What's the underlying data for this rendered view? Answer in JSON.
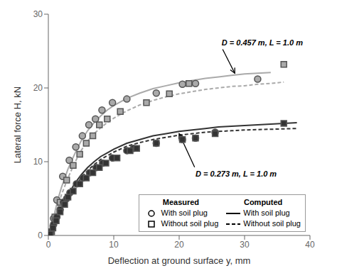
{
  "chart_data": {
    "type": "line",
    "xlabel": "Deflection at ground surface y, mm",
    "ylabel": "Lateral force H, kN",
    "xlim": [
      0,
      40
    ],
    "ylim": [
      0,
      30
    ],
    "xticks": [
      0,
      10,
      20,
      30,
      40
    ],
    "yticks": [
      0,
      10,
      20,
      30
    ],
    "grid": false,
    "legend": "lower right",
    "legend_groups": [
      "Measured",
      "Computed"
    ],
    "series": [
      {
        "name": "With soil plug",
        "group": "Computed",
        "type": "line",
        "line_style": "solid",
        "color": "#aaaaaa",
        "x": [
          0.0,
          0.3,
          0.6,
          1.0,
          1.5,
          2.0,
          3.0,
          4.0,
          5.0,
          6.0,
          7.0,
          8.0,
          9.0,
          10.0,
          12.0,
          14.0,
          16.0,
          18.0,
          20.0,
          22.0,
          24.0,
          26.0,
          28.0,
          30.0,
          32.0,
          34.0
        ],
        "values": [
          0.0,
          0.8,
          1.8,
          3.2,
          5.0,
          6.5,
          9.0,
          11.0,
          12.8,
          14.2,
          15.3,
          16.2,
          17.0,
          17.6,
          18.6,
          19.3,
          19.9,
          20.3,
          20.7,
          21.0,
          21.3,
          21.5,
          21.7,
          21.9,
          22.0,
          22.1
        ]
      },
      {
        "name": "Without soil plug",
        "group": "Computed",
        "type": "line",
        "line_style": "dashed",
        "color": "#aaaaaa",
        "x": [
          0.0,
          0.3,
          0.6,
          1.0,
          1.5,
          2.0,
          3.0,
          4.0,
          5.0,
          6.0,
          7.0,
          8.0,
          9.0,
          10.0,
          12.0,
          14.0,
          16.0,
          18.0,
          20.0,
          22.0,
          24.0,
          26.0,
          28.0,
          30.0,
          32.0,
          34.0,
          36.0
        ],
        "values": [
          0.0,
          0.6,
          1.4,
          2.5,
          4.0,
          5.5,
          7.8,
          9.8,
          11.5,
          12.8,
          13.8,
          14.6,
          15.3,
          15.9,
          16.9,
          17.7,
          18.3,
          18.8,
          19.2,
          19.5,
          19.8,
          20.0,
          20.2,
          20.3,
          20.5,
          20.6,
          20.8
        ]
      },
      {
        "name": "With soil plug",
        "group": "Computed",
        "type": "line",
        "line_style": "solid",
        "color": "#333333",
        "x": [
          0.0,
          0.3,
          0.6,
          1.0,
          1.5,
          2.0,
          3.0,
          4.0,
          5.0,
          6.0,
          7.0,
          8.0,
          9.0,
          10.0,
          12.0,
          14.0,
          16.0,
          18.0,
          20.0,
          22.0,
          24.0,
          26.0,
          28.0,
          30.0,
          32.0,
          34.0,
          36.0,
          38.0
        ],
        "values": [
          0.0,
          0.4,
          0.9,
          1.8,
          2.8,
          3.8,
          5.5,
          7.0,
          8.2,
          9.2,
          10.0,
          10.7,
          11.2,
          11.7,
          12.5,
          13.0,
          13.5,
          13.8,
          14.1,
          14.3,
          14.5,
          14.7,
          14.8,
          14.9,
          15.0,
          15.1,
          15.2,
          15.3
        ]
      },
      {
        "name": "Without soil plug",
        "group": "Computed",
        "type": "line",
        "line_style": "dashed",
        "color": "#333333",
        "x": [
          0.0,
          0.3,
          0.6,
          1.0,
          1.5,
          2.0,
          3.0,
          4.0,
          5.0,
          6.0,
          7.0,
          8.0,
          9.0,
          10.0,
          12.0,
          14.0,
          16.0,
          18.0,
          20.0,
          22.0,
          24.0,
          26.0,
          28.0,
          30.0,
          32.0,
          34.0,
          36.0,
          38.0
        ],
        "values": [
          0.0,
          0.3,
          0.8,
          1.5,
          2.5,
          3.5,
          5.0,
          6.5,
          7.8,
          8.8,
          9.6,
          10.3,
          10.8,
          11.3,
          12.1,
          12.6,
          13.0,
          13.3,
          13.6,
          13.8,
          14.0,
          14.1,
          14.2,
          14.3,
          14.35,
          14.4,
          14.45,
          14.5
        ]
      },
      {
        "name": "With soil plug",
        "group": "Measured",
        "type": "scatter",
        "marker": "circle",
        "color": "#aaaaaa",
        "x": [
          0.8,
          1.3,
          2.2,
          3.2,
          4.2,
          5.2,
          6.2,
          7.2,
          8.2,
          9.8,
          12.0,
          16.5,
          20.5,
          22.5,
          32.0
        ],
        "values": [
          2.3,
          4.8,
          8.0,
          10.2,
          12.0,
          13.5,
          15.0,
          15.8,
          17.0,
          18.0,
          18.5,
          19.3,
          20.5,
          20.6,
          21.2
        ]
      },
      {
        "name": "Without soil plug",
        "group": "Measured",
        "type": "scatter",
        "marker": "square",
        "color": "#aaaaaa",
        "x": [
          0.5,
          1.0,
          1.8,
          2.8,
          3.8,
          4.8,
          5.8,
          6.8,
          7.8,
          9.0,
          11.0,
          15.0,
          18.5,
          21.5,
          36.0
        ],
        "values": [
          0.5,
          2.5,
          4.5,
          7.5,
          9.5,
          11.0,
          12.5,
          13.5,
          15.0,
          15.8,
          16.8,
          18.0,
          19.2,
          20.6,
          23.2
        ]
      },
      {
        "name": "With soil plug",
        "group": "Measured",
        "type": "scatter",
        "marker": "circle",
        "color": "#333333",
        "x": [
          0.4,
          0.8,
          1.3,
          1.8,
          2.3,
          2.8,
          3.3,
          4.3,
          5.3,
          6.3,
          7.3,
          8.3,
          9.8,
          12.0,
          13.0,
          16.5,
          20.5,
          22.5,
          25.5
        ],
        "values": [
          0.5,
          1.5,
          2.5,
          3.5,
          4.5,
          5.0,
          5.8,
          7.0,
          7.8,
          8.5,
          9.2,
          9.8,
          10.5,
          11.5,
          11.8,
          12.5,
          13.0,
          13.2,
          14.0
        ]
      },
      {
        "name": "Without soil plug",
        "group": "Measured",
        "type": "scatter",
        "marker": "square",
        "color": "#333333",
        "x": [
          0.3,
          0.7,
          1.2,
          1.8,
          2.5,
          3.0,
          3.8,
          4.8,
          5.8,
          6.8,
          7.8,
          8.8,
          10.5,
          12.5,
          13.5,
          16.5,
          20.5,
          22.5,
          25.5,
          36.0
        ],
        "values": [
          0.2,
          1.0,
          2.0,
          3.2,
          4.2,
          5.2,
          6.0,
          7.0,
          7.8,
          8.5,
          9.2,
          9.8,
          10.5,
          11.5,
          11.8,
          12.5,
          13.0,
          13.2,
          13.8,
          15.2
        ]
      }
    ],
    "annotations": [
      {
        "text": "D = 0.457 m, L = 1.0 m",
        "x": 26.5,
        "y": 25.5,
        "arrow_x": 28.5,
        "arrow_y": 22.0
      },
      {
        "text": "D = 0.273 m, L = 1.0 m",
        "x": 22.5,
        "y": 9.0,
        "arrow_x": 20.0,
        "arrow_y": 13.8
      }
    ]
  }
}
